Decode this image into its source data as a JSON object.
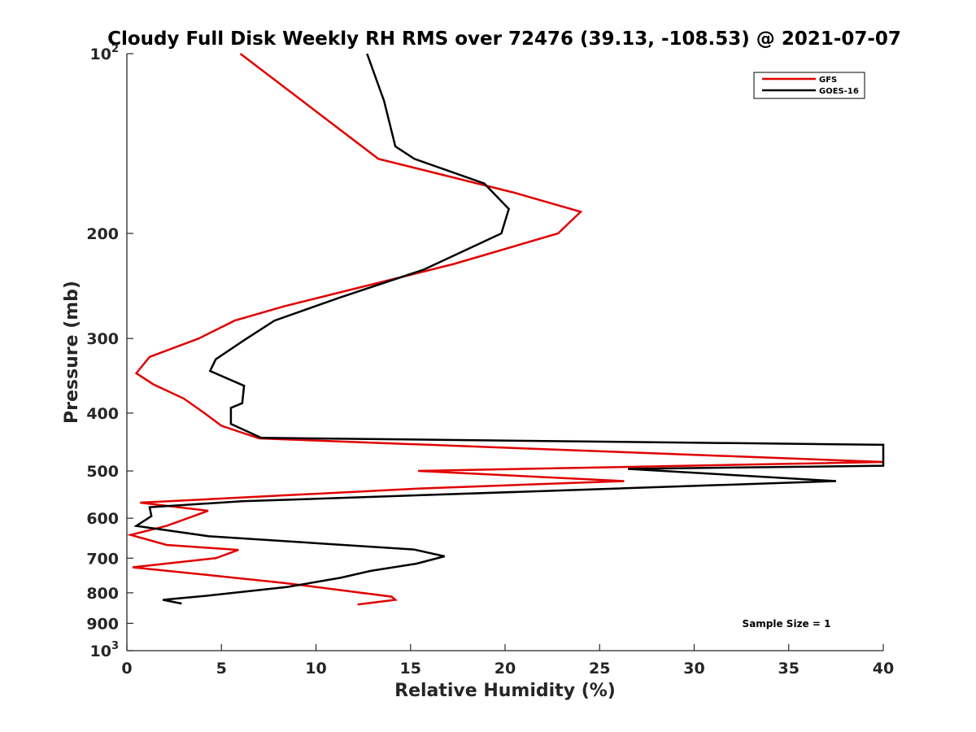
{
  "chart_data": {
    "type": "line",
    "title": "Cloudy Full Disk Weekly RH RMS over 72476 (39.13, -108.53) @ 2021-07-07",
    "xlabel": "Relative Humidity (%)",
    "ylabel": "Pressure (mb)",
    "xlim": [
      0,
      40
    ],
    "ylim": [
      100,
      1000
    ],
    "y_scale": "log",
    "y_reversed": true,
    "grid": false,
    "legend_position": "top-right",
    "x_ticks": [
      "0",
      "5",
      "10",
      "15",
      "20",
      "25",
      "30",
      "35",
      "40"
    ],
    "y_ticks": [
      {
        "value": 100,
        "base": "10",
        "exp": "2"
      },
      {
        "value": 200,
        "label": "200"
      },
      {
        "value": 300,
        "label": "300"
      },
      {
        "value": 400,
        "label": "400"
      },
      {
        "value": 500,
        "label": "500"
      },
      {
        "value": 600,
        "label": "600"
      },
      {
        "value": 700,
        "label": "700"
      },
      {
        "value": 800,
        "label": "800"
      },
      {
        "value": 900,
        "label": "900"
      },
      {
        "value": 1000,
        "base": "10",
        "exp": "3"
      }
    ],
    "series": [
      {
        "name": "GFS",
        "color": "#e00000",
        "points": [
          [
            6.0,
            100
          ],
          [
            13.3,
            150
          ],
          [
            20.5,
            171
          ],
          [
            24.0,
            184
          ],
          [
            22.8,
            200
          ],
          [
            17.3,
            225
          ],
          [
            8.3,
            265
          ],
          [
            5.7,
            280
          ],
          [
            3.8,
            300
          ],
          [
            1.2,
            322
          ],
          [
            0.5,
            343
          ],
          [
            1.4,
            358
          ],
          [
            3.0,
            378
          ],
          [
            4.1,
            400
          ],
          [
            5.0,
            420
          ],
          [
            7.0,
            441
          ],
          [
            40.0,
            483
          ],
          [
            15.4,
            500
          ],
          [
            26.3,
            520
          ],
          [
            15.5,
            535
          ],
          [
            0.7,
            565
          ],
          [
            4.3,
            583
          ],
          [
            2.1,
            618
          ],
          [
            0.2,
            640
          ],
          [
            2.1,
            665
          ],
          [
            5.9,
            678
          ],
          [
            4.7,
            700
          ],
          [
            0.3,
            725
          ],
          [
            4.3,
            747
          ],
          [
            8.3,
            770
          ],
          [
            14.0,
            812
          ],
          [
            14.2,
            822
          ],
          [
            12.2,
            837
          ]
        ]
      },
      {
        "name": "GOES-16",
        "color": "#000000",
        "points": [
          [
            12.7,
            100
          ],
          [
            13.6,
            120
          ],
          [
            14.2,
            143
          ],
          [
            15.2,
            150
          ],
          [
            18.9,
            165
          ],
          [
            20.2,
            182
          ],
          [
            19.8,
            200
          ],
          [
            15.7,
            230
          ],
          [
            11.3,
            256
          ],
          [
            7.8,
            280
          ],
          [
            6.2,
            302
          ],
          [
            4.7,
            325
          ],
          [
            4.4,
            340
          ],
          [
            6.2,
            360
          ],
          [
            6.1,
            385
          ],
          [
            5.5,
            392
          ],
          [
            5.5,
            417
          ],
          [
            7.1,
            440
          ],
          [
            40.0,
            452
          ],
          [
            40.0,
            490
          ],
          [
            26.5,
            496
          ],
          [
            37.5,
            520
          ],
          [
            6.1,
            562
          ],
          [
            1.2,
            575
          ],
          [
            1.3,
            595
          ],
          [
            0.5,
            618
          ],
          [
            4.3,
            643
          ],
          [
            15.2,
            677
          ],
          [
            16.8,
            695
          ],
          [
            15.3,
            715
          ],
          [
            12.9,
            735
          ],
          [
            11.3,
            755
          ],
          [
            8.5,
            782
          ],
          [
            4.1,
            810
          ],
          [
            1.9,
            822
          ],
          [
            2.9,
            834
          ]
        ]
      }
    ],
    "annotations": [
      "Sample Size = 1"
    ]
  }
}
